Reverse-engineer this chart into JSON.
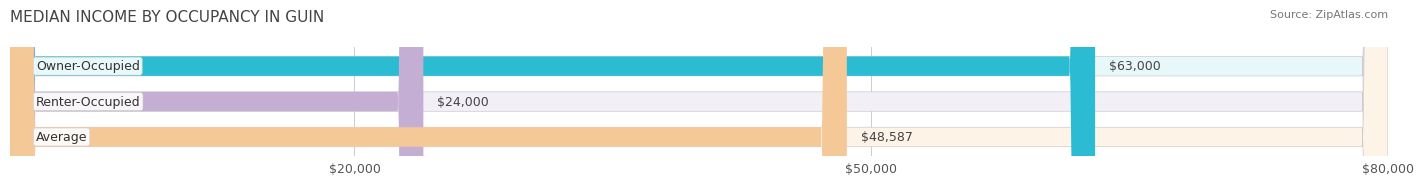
{
  "title": "MEDIAN INCOME BY OCCUPANCY IN GUIN",
  "source": "Source: ZipAtlas.com",
  "categories": [
    "Owner-Occupied",
    "Renter-Occupied",
    "Average"
  ],
  "values": [
    63000,
    24000,
    48587
  ],
  "labels": [
    "$63,000",
    "$24,000",
    "$48,587"
  ],
  "bar_colors": [
    "#2bbcd4",
    "#c4aed4",
    "#f5c897"
  ],
  "bg_colors": [
    "#e8f8fa",
    "#f3eff7",
    "#fdf3e7"
  ],
  "xlim": [
    0,
    80000
  ],
  "xticks": [
    20000,
    50000,
    80000
  ],
  "xticklabels": [
    "$20,000",
    "$50,000",
    "$80,000"
  ],
  "title_fontsize": 11,
  "source_fontsize": 8,
  "label_fontsize": 9,
  "cat_fontsize": 9,
  "bar_height": 0.55,
  "background_color": "#ffffff"
}
